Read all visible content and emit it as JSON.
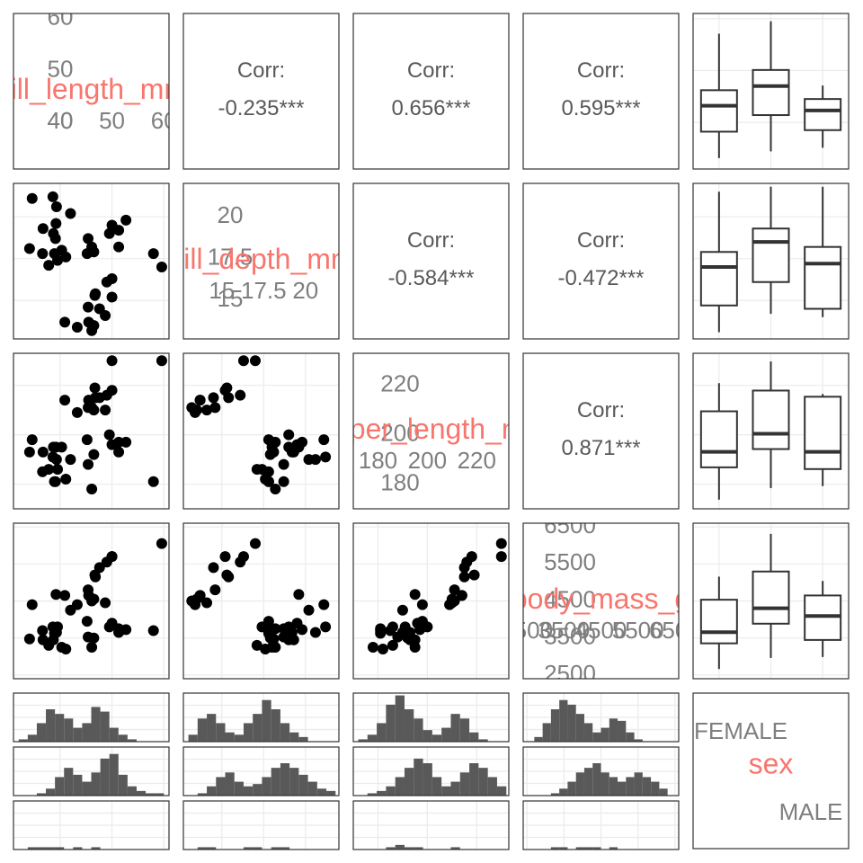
{
  "chart_data": {
    "type": "pairs",
    "label_color": "#f8766d",
    "point_color": "#000000",
    "box_color": "#333333",
    "bar_color": "#595959",
    "variables": [
      {
        "name": "bill_length_mm",
        "lim": [
          31,
          61
        ],
        "ticks": [
          40,
          50,
          60
        ],
        "values": [
          39.1,
          39.5,
          40.3,
          36.7,
          39.3,
          38.9,
          39.2,
          34.1,
          42.0,
          37.8,
          41.1,
          38.6,
          34.6,
          36.6,
          38.7,
          46.1,
          50.0,
          48.7,
          50.0,
          47.6,
          46.5,
          45.4,
          46.7,
          43.3,
          46.8,
          40.9,
          49.0,
          45.5,
          59.6,
          46.5,
          50.0,
          51.3,
          45.4,
          52.7,
          45.2,
          46.1,
          51.3,
          58.0,
          49.5
        ]
      },
      {
        "name": "bill_depth_mm",
        "lim": [
          12.7,
          22
        ],
        "ticks": [
          15,
          17.5,
          20
        ],
        "values": [
          18.7,
          17.4,
          18.0,
          19.3,
          20.6,
          17.8,
          19.6,
          18.1,
          20.2,
          17.1,
          17.6,
          21.2,
          21.1,
          17.8,
          19.0,
          13.2,
          16.3,
          14.1,
          15.2,
          14.5,
          13.5,
          14.6,
          15.3,
          13.4,
          15.4,
          13.7,
          16.1,
          13.7,
          17.0,
          17.9,
          19.5,
          19.2,
          18.7,
          19.8,
          17.8,
          18.2,
          18.2,
          17.8,
          19.0
        ]
      },
      {
        "name": "flipper_length_mm",
        "lim": [
          170,
          233
        ],
        "ticks": [
          180,
          200,
          220
        ],
        "values": [
          181,
          186,
          195,
          193,
          190,
          181,
          195,
          193,
          190,
          186,
          182,
          191,
          198,
          185,
          195,
          211,
          230,
          210,
          218,
          215,
          210,
          211,
          219,
          209,
          215,
          214,
          216,
          214,
          230,
          192,
          196,
          193,
          188,
          197,
          198,
          178,
          197,
          181,
          200
        ]
      },
      {
        "name": "body_mass_g",
        "lim": [
          2400,
          6600
        ],
        "ticks": [
          2500,
          3500,
          4500,
          5500,
          6500
        ],
        "values": [
          3750,
          3800,
          3250,
          3450,
          3650,
          3625,
          4675,
          3475,
          4250,
          3300,
          3200,
          3800,
          4400,
          3700,
          3450,
          4500,
          5700,
          4450,
          5700,
          5400,
          4550,
          4800,
          5200,
          4400,
          5150,
          4650,
          5550,
          4650,
          6050,
          3500,
          3900,
          3650,
          3525,
          3725,
          3950,
          3250,
          3750,
          3700,
          3800
        ]
      }
    ],
    "factor": {
      "name": "sex",
      "categories": [
        "FEMALE",
        "MALE",
        null
      ]
    },
    "correlations": {
      "title": "Corr:",
      "values": [
        -0.235,
        0.656,
        0.595,
        -0.584,
        -0.472,
        0.871
      ],
      "value_labels": [
        "-0.235***",
        "0.656***",
        "0.595***",
        "-0.584***",
        "-0.472***",
        "0.871***"
      ]
    },
    "boxplots": [
      [
        {
          "low": 33.1,
          "q1": 38.2,
          "median": 43.2,
          "q3": 46.2,
          "high": 57.1
        },
        {
          "low": 34.4,
          "q1": 41.4,
          "median": 47.0,
          "q3": 50.1,
          "high": 59.5
        },
        {
          "low": 35.1,
          "q1": 38.5,
          "median": 42.3,
          "q3": 44.5,
          "high": 47.1
        }
      ],
      [
        {
          "low": 13.1,
          "q1": 14.7,
          "median": 17.0,
          "q3": 17.9,
          "high": 21.5
        },
        {
          "low": 14.2,
          "q1": 16.1,
          "median": 18.5,
          "q3": 19.3,
          "high": 21.8
        },
        {
          "low": 14.0,
          "q1": 14.5,
          "median": 17.2,
          "q3": 18.2,
          "high": 21.8
        }
      ],
      [
        {
          "low": 173.7,
          "q1": 186.8,
          "median": 193.1,
          "q3": 209.5,
          "high": 220.9
        },
        {
          "low": 178.4,
          "q1": 194.2,
          "median": 200.4,
          "q3": 217.9,
          "high": 229.7
        },
        {
          "low": 179.2,
          "q1": 186.1,
          "median": 193.1,
          "q3": 215.4,
          "high": 216.5
        }
      ],
      [
        {
          "low": 2662,
          "q1": 3355,
          "median": 3655,
          "q3": 4533,
          "high": 5157
        },
        {
          "low": 2962,
          "q1": 3886,
          "median": 4302,
          "q3": 5295,
          "high": 6312
        },
        {
          "low": 2985,
          "q1": 3447,
          "median": 4094,
          "q3": 4648,
          "high": 5041
        }
      ]
    ],
    "hist_ylim": [
      0,
      21
    ],
    "histograms": [
      {
        "bins": [
          32,
          33.75,
          35.5,
          37.25,
          39,
          40.75,
          42.5,
          44.25,
          46,
          47.75,
          49.5,
          51.25,
          53,
          54.75,
          56.5,
          58.25,
          60
        ],
        "counts": [
          [
            1,
            3,
            8,
            14,
            12,
            10,
            6,
            8,
            15,
            13,
            6,
            3,
            1,
            0,
            0,
            0
          ],
          [
            0,
            0,
            1,
            3,
            8,
            12,
            9,
            6,
            10,
            16,
            18,
            9,
            4,
            2,
            1,
            1
          ],
          [
            0,
            1,
            1,
            1,
            1,
            0,
            1,
            0,
            1,
            0,
            0,
            0,
            0,
            0,
            0,
            0
          ]
        ]
      },
      {
        "bins": [
          13,
          13.55,
          14.1,
          14.65,
          15.2,
          15.75,
          16.3,
          16.85,
          17.4,
          17.95,
          18.5,
          19.05,
          19.6,
          20.15,
          20.7,
          21.25,
          21.8
        ],
        "counts": [
          [
            3,
            10,
            12,
            8,
            4,
            3,
            8,
            12,
            18,
            14,
            8,
            4,
            2,
            0,
            0,
            0
          ],
          [
            0,
            1,
            4,
            8,
            10,
            6,
            4,
            5,
            8,
            12,
            14,
            12,
            9,
            6,
            3,
            2
          ],
          [
            0,
            1,
            1,
            0,
            0,
            0,
            1,
            1,
            0,
            1,
            1,
            0,
            0,
            0,
            0,
            0
          ]
        ]
      },
      {
        "bins": [
          172,
          175.75,
          179.5,
          183.25,
          187,
          190.75,
          194.5,
          198.25,
          202,
          205.75,
          209.5,
          213.25,
          217,
          220.75,
          224.5,
          228.25,
          232
        ],
        "counts": [
          [
            1,
            3,
            8,
            16,
            20,
            14,
            10,
            5,
            3,
            6,
            12,
            10,
            4,
            1,
            0,
            0
          ],
          [
            0,
            1,
            2,
            4,
            8,
            12,
            16,
            14,
            8,
            4,
            6,
            10,
            14,
            12,
            8,
            4
          ],
          [
            0,
            0,
            0,
            1,
            2,
            1,
            1,
            0,
            0,
            0,
            1,
            0,
            0,
            0,
            0,
            0
          ]
        ]
      },
      {
        "bins": [
          2700,
          2925,
          3150,
          3375,
          3600,
          3825,
          4050,
          4275,
          4500,
          4725,
          4950,
          5175,
          5400,
          5625,
          5850,
          6075,
          6300
        ],
        "counts": [
          [
            2,
            8,
            14,
            18,
            16,
            12,
            8,
            4,
            6,
            10,
            9,
            4,
            1,
            0,
            0,
            0
          ],
          [
            0,
            0,
            1,
            3,
            6,
            10,
            12,
            14,
            10,
            8,
            6,
            8,
            10,
            8,
            6,
            3
          ],
          [
            0,
            0,
            1,
            1,
            0,
            1,
            1,
            1,
            0,
            1,
            0,
            0,
            0,
            0,
            0,
            0
          ]
        ]
      }
    ]
  }
}
